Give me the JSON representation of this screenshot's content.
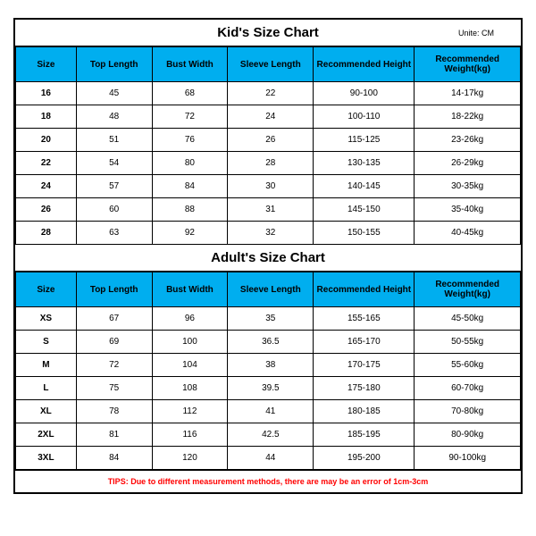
{
  "unit_label": "Unite: CM",
  "kids": {
    "title": "Kid's Size Chart",
    "columns": [
      "Size",
      "Top Length",
      "Bust Width",
      "Sleeve Length",
      "Recommended Height",
      "Recommended Weight(kg)"
    ],
    "rows": [
      [
        "16",
        "45",
        "68",
        "22",
        "90-100",
        "14-17kg"
      ],
      [
        "18",
        "48",
        "72",
        "24",
        "100-110",
        "18-22kg"
      ],
      [
        "20",
        "51",
        "76",
        "26",
        "115-125",
        "23-26kg"
      ],
      [
        "22",
        "54",
        "80",
        "28",
        "130-135",
        "26-29kg"
      ],
      [
        "24",
        "57",
        "84",
        "30",
        "140-145",
        "30-35kg"
      ],
      [
        "26",
        "60",
        "88",
        "31",
        "145-150",
        "35-40kg"
      ],
      [
        "28",
        "63",
        "92",
        "32",
        "150-155",
        "40-45kg"
      ]
    ]
  },
  "adults": {
    "title": "Adult's Size Chart",
    "columns": [
      "Size",
      "Top Length",
      "Bust Width",
      "Sleeve Length",
      "Recommended Height",
      "Recommended Weight(kg)"
    ],
    "rows": [
      [
        "XS",
        "67",
        "96",
        "35",
        "155-165",
        "45-50kg"
      ],
      [
        "S",
        "69",
        "100",
        "36.5",
        "165-170",
        "50-55kg"
      ],
      [
        "M",
        "72",
        "104",
        "38",
        "170-175",
        "55-60kg"
      ],
      [
        "L",
        "75",
        "108",
        "39.5",
        "175-180",
        "60-70kg"
      ],
      [
        "XL",
        "78",
        "112",
        "41",
        "180-185",
        "70-80kg"
      ],
      [
        "2XL",
        "81",
        "116",
        "42.5",
        "185-195",
        "80-90kg"
      ],
      [
        "3XL",
        "84",
        "120",
        "44",
        "195-200",
        "90-100kg"
      ]
    ]
  },
  "tips": "TIPS: Due to different measurement methods, there are may be an error of 1cm-3cm",
  "style": {
    "header_bg": "#00aeef",
    "border_color": "#000000",
    "tips_color": "#ff0000",
    "background": "#ffffff",
    "title_fontsize": 15,
    "header_fontsize": 10,
    "cell_fontsize": 10,
    "unit_fontsize": 9,
    "tips_fontsize": 9,
    "col_widths_pct": [
      12,
      15,
      15,
      17,
      20,
      21
    ]
  }
}
